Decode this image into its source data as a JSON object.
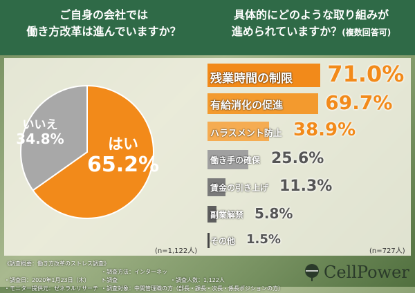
{
  "header": {
    "q1_line1": "ご自身の会社では",
    "q1_line2": "働き方改革は進んでいますか？",
    "q2_line1": "具体的にどのような取り組みが",
    "q2_line2": "進められていますか？",
    "q2_note": "(複数回答可)"
  },
  "chart_data": [
    {
      "type": "pie",
      "categories": [
        "はい",
        "いいえ"
      ],
      "values": [
        65.2,
        34.8
      ],
      "value_labels": [
        "65.2%",
        "34.8%"
      ],
      "colors": [
        "#f28a1a",
        "#a8a8a8"
      ],
      "note": "(n=1,122人)"
    },
    {
      "type": "bar",
      "orientation": "horizontal",
      "categories": [
        "残業時間の制限",
        "有給消化の促進",
        "ハラスメント防止",
        "働き手の確保",
        "賃金の引き上げ",
        "副業解禁",
        "その他"
      ],
      "values": [
        71.0,
        69.7,
        38.9,
        25.6,
        11.3,
        5.8,
        1.5
      ],
      "value_labels": [
        "71.0%",
        "69.7%",
        "38.9%",
        "25.6%",
        "11.3%",
        "5.8%",
        "1.5%"
      ],
      "colors": [
        "#f28a1a",
        "#f39a2e",
        "#f5ac52",
        "#a0a0a0",
        "#7a7a7a",
        "#5e5e5e",
        "#444444"
      ],
      "note": "(n=727人)"
    }
  ],
  "footer": {
    "summary": "《調査概要：働き方改革のストレス調査》",
    "date": "・調査日：2020年1月23日（木）",
    "method": "・調査方法：インターネット調査",
    "count": "・調査人数：1,122人",
    "provider": "・モニター提供元：ゼネラルリサーチ",
    "target": "・調査対象：中間管理職の方（部長・課長・次長・係長ポジションの方）"
  },
  "logo": {
    "text": "CellPower"
  }
}
